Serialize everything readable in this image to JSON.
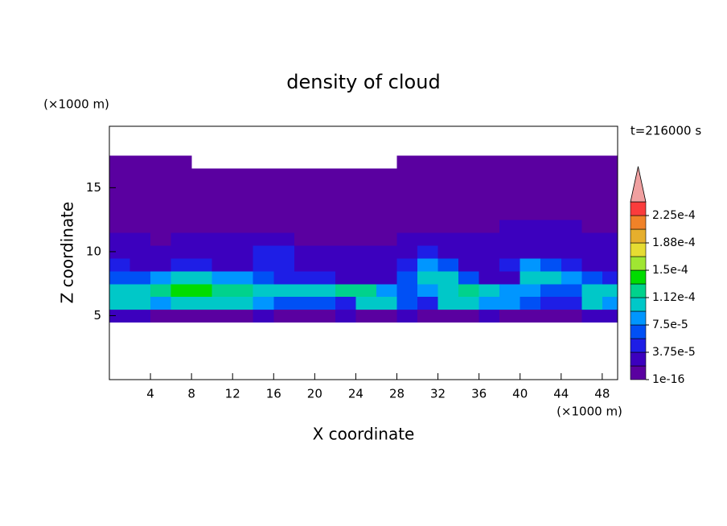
{
  "chart_data": {
    "type": "contour",
    "title": "density of cloud",
    "xlabel": "X coordinate",
    "ylabel": "Z coordinate",
    "xunit": "(×1000 m)",
    "yunit": "(×1000 m)",
    "time_label": "t=216000 s",
    "xlim": [
      0,
      49.5
    ],
    "ylim": [
      0,
      19.8
    ],
    "xticks": [
      4,
      8,
      12,
      16,
      20,
      24,
      28,
      32,
      36,
      40,
      44,
      48
    ],
    "yticks": [
      5,
      10,
      15
    ],
    "x": [
      1,
      3,
      5,
      7,
      9,
      11,
      13,
      15,
      17,
      19,
      21,
      23,
      25,
      27,
      29,
      31,
      33,
      35,
      37,
      39,
      41,
      43,
      45,
      47,
      49
    ],
    "z": [
      5,
      6,
      7,
      8,
      9,
      10,
      11,
      12,
      13,
      14,
      15,
      16,
      17
    ],
    "values": [
      [
        2.5e-05,
        2.5e-05,
        1e-05,
        1e-05,
        1e-05,
        1e-05,
        1e-05,
        2.5e-05,
        1e-05,
        1e-05,
        1e-05,
        2.5e-05,
        1e-05,
        1e-05,
        2.5e-05,
        1e-05,
        1e-05,
        1e-05,
        2.5e-05,
        1e-05,
        1e-05,
        1e-05,
        1e-05,
        2.5e-05,
        2.5e-05
      ],
      [
        0.0001,
        0.0001,
        8.5e-05,
        0.000105,
        0.000105,
        0.0001,
        0.0001,
        8e-05,
        6e-05,
        6e-05,
        6e-05,
        4.5e-05,
        0.0001,
        0.0001,
        6e-05,
        4.5e-05,
        0.0001,
        0.0001,
        8e-05,
        8e-05,
        6e-05,
        4.5e-05,
        4.5e-05,
        0.0001,
        9e-05
      ],
      [
        0.0001,
        0.000105,
        0.00012,
        0.000135,
        0.000135,
        0.00013,
        0.000125,
        0.00011,
        0.0001,
        0.0001,
        0.000105,
        0.000115,
        0.00012,
        8e-05,
        6e-05,
        8e-05,
        0.0001,
        0.00013,
        0.0001,
        8e-05,
        8e-05,
        6e-05,
        6e-05,
        0.0001,
        0.000105
      ],
      [
        6e-05,
        6e-05,
        8e-05,
        0.0001,
        0.0001,
        9e-05,
        8e-05,
        6e-05,
        4.5e-05,
        4.5e-05,
        4.5e-05,
        3e-05,
        3e-05,
        3e-05,
        6e-05,
        0.000105,
        0.0001,
        6e-05,
        3e-05,
        3e-05,
        0.0001,
        0.000105,
        8e-05,
        6e-05,
        4.5e-05
      ],
      [
        4.5e-05,
        3e-05,
        3e-05,
        4.5e-05,
        4.5e-05,
        3e-05,
        3e-05,
        4.5e-05,
        4.5e-05,
        3e-05,
        3e-05,
        3e-05,
        2.5e-05,
        3e-05,
        4.5e-05,
        9e-05,
        6e-05,
        3e-05,
        2.5e-05,
        4.5e-05,
        8e-05,
        6e-05,
        4.5e-05,
        3e-05,
        3e-05
      ],
      [
        2.5e-05,
        3e-05,
        2.5e-05,
        2.5e-05,
        3e-05,
        2.5e-05,
        3e-05,
        4.5e-05,
        4.5e-05,
        3e-05,
        2.5e-05,
        2.5e-05,
        2.5e-05,
        2.5e-05,
        3e-05,
        4.5e-05,
        3e-05,
        2.5e-05,
        2.5e-05,
        2.5e-05,
        2.5e-05,
        2.5e-05,
        2.5e-05,
        2.5e-05,
        2.5e-05
      ],
      [
        2.5e-05,
        2.5e-05,
        1e-05,
        2.5e-05,
        2.5e-05,
        2.5e-05,
        2.5e-05,
        2.5e-05,
        2.5e-05,
        1e-05,
        1e-05,
        1e-05,
        1e-05,
        1e-05,
        2.5e-05,
        2.5e-05,
        2.5e-05,
        2.5e-05,
        2.5e-05,
        2.5e-05,
        2.5e-05,
        2.5e-05,
        2.5e-05,
        2.5e-05,
        2.5e-05
      ],
      [
        1e-05,
        1e-05,
        1e-05,
        1e-05,
        1e-05,
        1e-05,
        1e-05,
        1e-05,
        1e-05,
        1e-05,
        1e-05,
        1e-05,
        1e-05,
        1e-05,
        1e-05,
        1e-05,
        1e-05,
        1e-05,
        1e-05,
        2.5e-05,
        2.5e-05,
        2.5e-05,
        2.5e-05,
        1e-05,
        1e-05
      ],
      [
        1e-05,
        1e-05,
        1e-05,
        1e-05,
        1e-05,
        1e-05,
        1e-05,
        1e-05,
        1e-05,
        1e-05,
        1e-05,
        1e-05,
        1e-05,
        1e-05,
        1e-05,
        1e-05,
        1e-05,
        1e-05,
        1e-05,
        1e-05,
        1e-05,
        1e-05,
        1e-05,
        1e-05,
        1e-05
      ],
      [
        1e-05,
        1e-05,
        1e-05,
        1e-05,
        1e-05,
        1e-05,
        1e-05,
        1e-05,
        1e-05,
        1e-05,
        1e-05,
        1e-05,
        1e-05,
        1e-05,
        1e-05,
        1e-05,
        1e-05,
        1e-05,
        1e-05,
        1e-05,
        1e-05,
        1e-05,
        1e-05,
        1e-05,
        1e-05
      ],
      [
        1e-05,
        1e-05,
        1e-05,
        1e-05,
        1e-05,
        1e-05,
        1e-05,
        1e-05,
        1e-05,
        1e-05,
        1e-05,
        1e-05,
        1e-05,
        1e-05,
        1e-05,
        1e-05,
        1e-05,
        1e-05,
        1e-05,
        1e-05,
        1e-05,
        1e-05,
        1e-05,
        1e-05,
        1e-05
      ],
      [
        1e-05,
        1e-05,
        1e-05,
        1e-05,
        1e-05,
        1e-05,
        1e-05,
        1e-05,
        1e-05,
        1e-05,
        1e-05,
        1e-05,
        1e-05,
        1e-05,
        1e-05,
        1e-05,
        1e-05,
        1e-05,
        1e-05,
        1e-05,
        1e-05,
        1e-05,
        1e-05,
        1e-05,
        1e-05
      ],
      [
        1e-05,
        1e-05,
        1e-05,
        1e-05,
        null,
        null,
        null,
        null,
        null,
        null,
        null,
        null,
        null,
        null,
        1e-05,
        1e-05,
        1e-05,
        1e-05,
        1e-05,
        1e-05,
        1e-05,
        1e-05,
        1e-05,
        1e-05,
        1e-05
      ]
    ],
    "levels": [
      1e-16,
      1.875e-05,
      3.75e-05,
      5.625e-05,
      7.5e-05,
      9.375e-05,
      0.0001125,
      0.00013125,
      0.00015,
      0.00016875,
      0.0001875,
      0.00020625,
      0.000225,
      0.00024375
    ],
    "colors": [
      "#5a00a0",
      "#3c00be",
      "#1e1ee6",
      "#0050f5",
      "#0096ff",
      "#00c8c8",
      "#00d28c",
      "#00dc00",
      "#a0e632",
      "#e6dc32",
      "#e6af2d",
      "#f08228",
      "#fa3c3c",
      "#f0a0a0"
    ],
    "cbar_ticks": [
      1e-16,
      {
        "value": 3.75e-05,
        "label": "3.75e-5"
      },
      {
        "value": 7.5e-05,
        "label": "7.5e-5"
      },
      {
        "value": 0.0001125,
        "label": "1.12e-4"
      },
      {
        "value": 0.00015,
        "label": "1.5e-4"
      },
      {
        "value": 0.0001875,
        "label": "1.88e-4"
      },
      {
        "value": 0.000225,
        "label": "2.25e-4"
      }
    ]
  }
}
